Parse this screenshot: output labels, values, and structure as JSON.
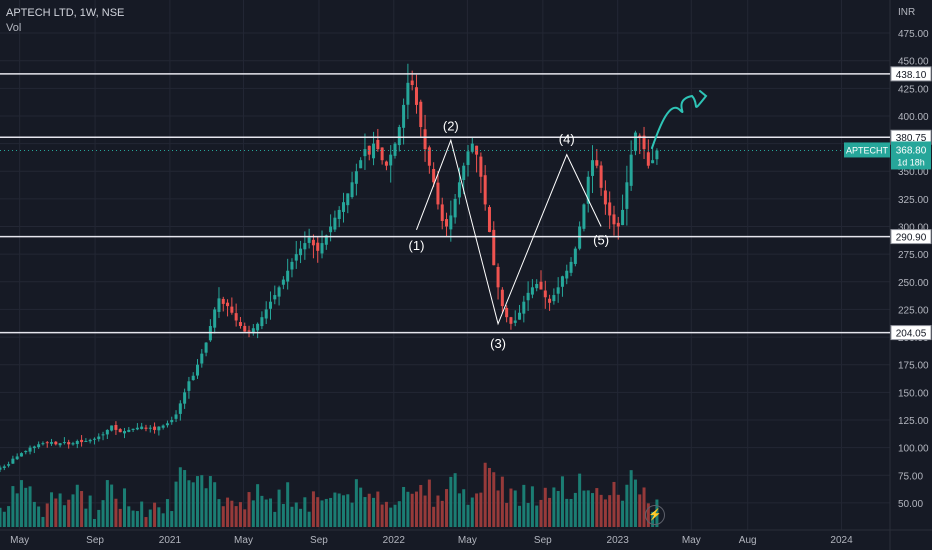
{
  "header": {
    "symbol_line": "APTECH LTD, 1W, NSE",
    "volume_label": "Vol"
  },
  "axis_unit": "INR",
  "colors": {
    "background": "#161a25",
    "grid": "#232734",
    "up": "#26a69a",
    "down": "#ef5350",
    "up_volume": "#1b7d73",
    "down_volume": "#963a3a",
    "level_line": "#e6e6ee",
    "price_badge": "#26a69a",
    "annotation": "#ffffff",
    "freehand": "#2ec4b6"
  },
  "price_levels": [
    "438.10",
    "380.75",
    "290.90",
    "204.05"
  ],
  "last_price": {
    "symbol": "APTECHT",
    "price": "368.80",
    "countdown": "1d 18h"
  },
  "wave_labels": [
    {
      "label": "(1)",
      "x": "2022-02-07",
      "y": 295
    },
    {
      "label": "(2)",
      "x": "2022-04-04",
      "y": 378
    },
    {
      "label": "(3)",
      "x": "2022-06-20",
      "y": 210
    },
    {
      "label": "(4)",
      "x": "2022-10-10",
      "y": 368
    },
    {
      "label": "(5)",
      "x": "2022-12-05",
      "y": 298
    }
  ],
  "chart_data": {
    "type": "candlestick",
    "title": "APTECH LTD, 1W, NSE",
    "interval": "weekly",
    "y_scale": "linear",
    "ylim": [
      30,
      485
    ],
    "y_ticks": [
      50,
      75,
      100,
      125,
      150,
      175,
      200,
      225,
      250,
      275,
      300,
      325,
      350,
      375,
      400,
      425,
      450,
      475
    ],
    "x_ticks": [
      {
        "label": "May",
        "date": "2020-05-01"
      },
      {
        "label": "Sep",
        "date": "2020-09-01"
      },
      {
        "label": "2021",
        "date": "2021-01-01"
      },
      {
        "label": "May",
        "date": "2021-05-01"
      },
      {
        "label": "Sep",
        "date": "2021-09-01"
      },
      {
        "label": "2022",
        "date": "2022-01-01"
      },
      {
        "label": "May",
        "date": "2022-05-01"
      },
      {
        "label": "Sep",
        "date": "2022-09-01"
      },
      {
        "label": "2023",
        "date": "2023-01-01"
      },
      {
        "label": "May",
        "date": "2023-05-01"
      },
      {
        "label": "Aug",
        "date": "2023-08-01"
      },
      {
        "label": "2024",
        "date": "2024-01-01"
      }
    ],
    "grid": true,
    "horizontal_levels": [
      438.1,
      380.75,
      290.9,
      204.05
    ],
    "wave_path": [
      {
        "x": "2022-02-07",
        "y": 297
      },
      {
        "x": "2022-04-04",
        "y": 378
      },
      {
        "x": "2022-06-20",
        "y": 212
      },
      {
        "x": "2022-10-10",
        "y": 365
      },
      {
        "x": "2022-12-05",
        "y": 300
      }
    ],
    "weekly_closes": {
      "start": "2020-03-30",
      "values": [
        82,
        83,
        85,
        90,
        92,
        95,
        97,
        100,
        101,
        103,
        104,
        104,
        105,
        103,
        104,
        105,
        103,
        104,
        106,
        105,
        106,
        107,
        108,
        110,
        112,
        116,
        120,
        116,
        114,
        115,
        116,
        117,
        118,
        119,
        117,
        118,
        116,
        119,
        120,
        122,
        125,
        130,
        140,
        150,
        160,
        165,
        175,
        185,
        195,
        210,
        225,
        235,
        230,
        228,
        222,
        215,
        210,
        205,
        205,
        208,
        212,
        218,
        225,
        232,
        238,
        245,
        252,
        260,
        268,
        275,
        280,
        285,
        290,
        283,
        278,
        285,
        292,
        300,
        308,
        315,
        322,
        330,
        340,
        350,
        360,
        370,
        365,
        375,
        370,
        360,
        355,
        365,
        375,
        390,
        410,
        430,
        428,
        410,
        390,
        370,
        355,
        340,
        320,
        305,
        300,
        310,
        325,
        340,
        355,
        368,
        375,
        365,
        345,
        320,
        295,
        265,
        245,
        228,
        218,
        212,
        215,
        222,
        232,
        240,
        245,
        248,
        243,
        236,
        231,
        238,
        245,
        255,
        260,
        268,
        280,
        300,
        320,
        345,
        360,
        355,
        335,
        320,
        310,
        302,
        300,
        315,
        340,
        365,
        385,
        380,
        370,
        355,
        360,
        368.8
      ]
    },
    "volume_axis_note": "volume bars at bottom, unscaled"
  }
}
